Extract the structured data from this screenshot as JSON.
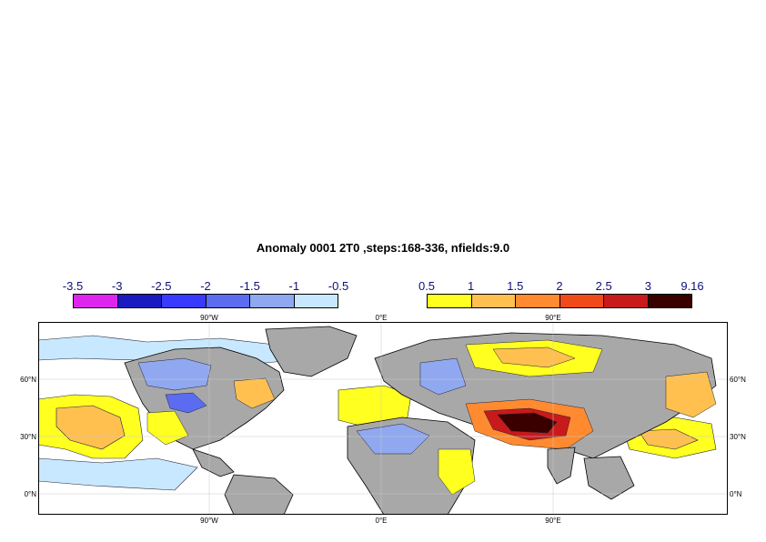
{
  "title": "Anomaly 0001 2T0 ,steps:168-336, nfields:9.0",
  "legend_negative": {
    "labels": [
      "-3.5",
      "-3",
      "-2.5",
      "-2",
      "-1.5",
      "-1",
      "-0.5"
    ],
    "colors": [
      "#e024f0",
      "#1a1ac0",
      "#3a3aff",
      "#5c6cf0",
      "#90a8f0",
      "#c8e8ff"
    ]
  },
  "legend_positive": {
    "labels": [
      "0.5",
      "1",
      "1.5",
      "2",
      "2.5",
      "3",
      "9.16"
    ],
    "colors": [
      "#ffff20",
      "#ffc050",
      "#ff8a30",
      "#f04a18",
      "#c81a1a",
      "#3a0000"
    ]
  },
  "map": {
    "lon_ticks_top": [
      "90°W",
      "0°E",
      "90°E"
    ],
    "lon_ticks_bottom": [
      "90°W",
      "0°E",
      "90°E"
    ],
    "lat_ticks_left": [
      "60°N",
      "30°N",
      "0°N"
    ],
    "lat_ticks_right": [
      "60°N",
      "30°N",
      "0°N"
    ],
    "land_color": "#a8a8a8",
    "ocean_color": "#ffffff"
  }
}
